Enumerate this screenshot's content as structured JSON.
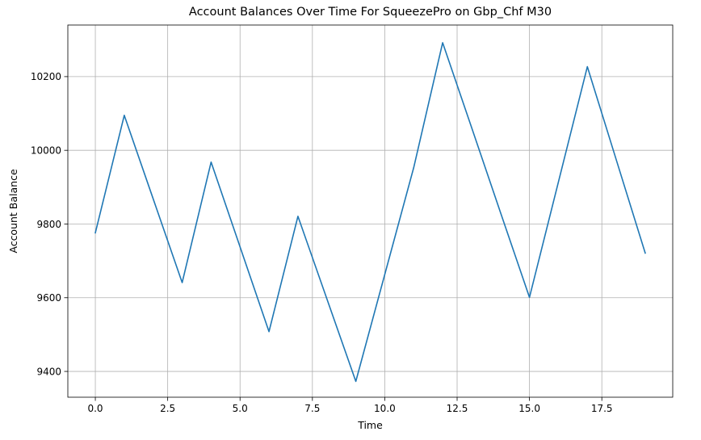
{
  "chart_data": {
    "type": "line",
    "title": "Account Balances Over Time For SqueezePro on Gbp_Chf M30",
    "xlabel": "Time",
    "ylabel": "Account Balance",
    "xlim": [
      -0.95,
      19.95
    ],
    "ylim": [
      9330,
      10340
    ],
    "x_ticks": [
      0.0,
      2.5,
      5.0,
      7.5,
      10.0,
      12.5,
      15.0,
      17.5
    ],
    "x_tick_labels": [
      "0.0",
      "2.5",
      "5.0",
      "7.5",
      "10.0",
      "12.5",
      "15.0",
      "17.5"
    ],
    "y_ticks": [
      9400,
      9600,
      9800,
      10000,
      10200
    ],
    "y_tick_labels": [
      "9400",
      "9600",
      "9800",
      "10000",
      "10200"
    ],
    "grid": true,
    "legend": "none",
    "series": [
      {
        "color": "#1f77b4",
        "x": [
          0,
          1,
          2,
          3,
          4,
          5,
          6,
          7,
          8,
          9,
          10,
          11,
          12,
          13,
          14,
          15,
          16,
          17,
          18,
          19
        ],
        "values": [
          9776,
          10095,
          9868,
          9641,
          9968,
          9738,
          9508,
          9821,
          9597,
          9373,
          9663,
          9953,
          10292,
          10062,
          9831,
          9601,
          9914,
          10227,
          9974,
          9721
        ]
      }
    ]
  }
}
